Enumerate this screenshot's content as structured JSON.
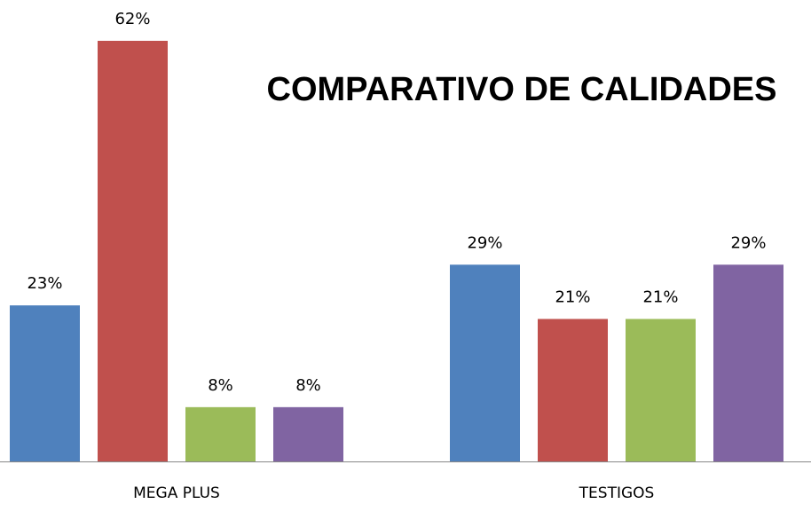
{
  "chart_data": {
    "type": "bar",
    "title": "COMPARATIVO DE CALIDADES",
    "categories": [
      "MEGA PLUS",
      "TESTIGOS"
    ],
    "series": [
      {
        "color": "#4f81bd",
        "values": [
          23,
          29
        ],
        "value_labels": [
          "23%",
          "29%"
        ]
      },
      {
        "color": "#c0504d",
        "values": [
          62,
          21
        ],
        "value_labels": [
          "62%",
          "21%"
        ]
      },
      {
        "color": "#9bbb59",
        "values": [
          8,
          21
        ],
        "value_labels": [
          "8%",
          "21%"
        ]
      },
      {
        "color": "#8064a2",
        "values": [
          8,
          29
        ],
        "value_labels": [
          "8%",
          "29%"
        ]
      }
    ]
  }
}
